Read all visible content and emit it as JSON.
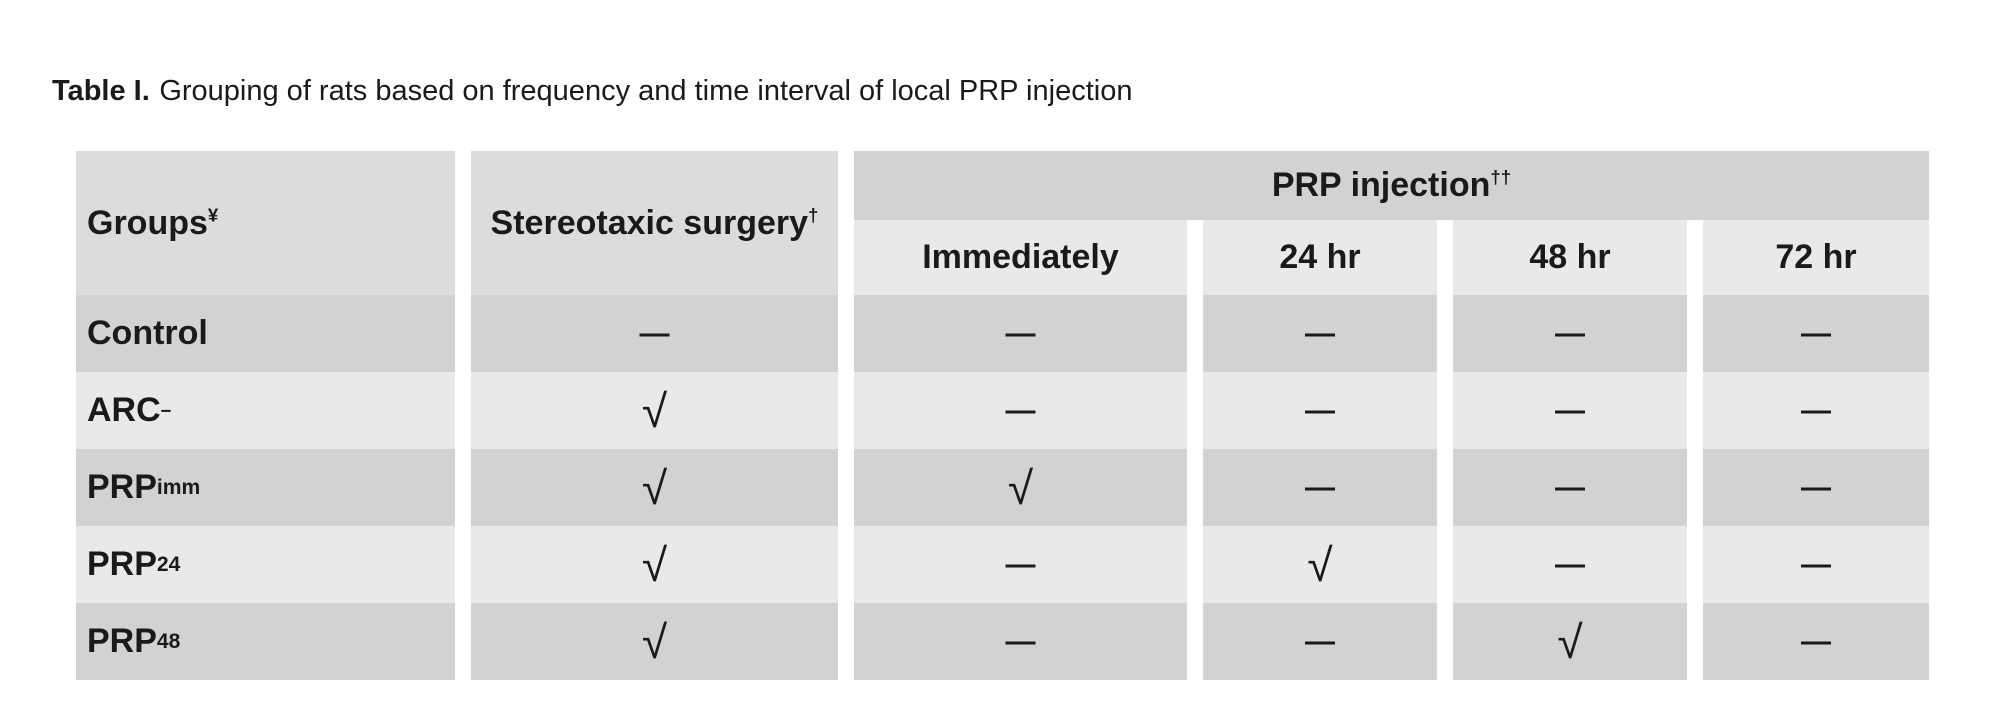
{
  "title": {
    "label": "Table I.",
    "text": "Grouping of rats based on frequency and time interval of local PRP injection"
  },
  "table": {
    "columns": {
      "groups": {
        "text": "Groups",
        "sup": "¥"
      },
      "stereotaxic": {
        "text": "Stereotaxic surgery",
        "sup": "†"
      },
      "prp_group": {
        "text": "PRP injection",
        "sup": "††"
      },
      "subheaders": [
        "Immediately",
        "24 hr",
        "48 hr",
        "72 hr"
      ]
    },
    "symbols": {
      "check": "√",
      "dash": "—"
    },
    "rows": [
      {
        "label": {
          "text": "Control"
        },
        "values": [
          "—",
          "—",
          "—",
          "—",
          "—"
        ]
      },
      {
        "label": {
          "text": "ARC",
          "sup": "−"
        },
        "values": [
          "√",
          "—",
          "—",
          "—",
          "—"
        ]
      },
      {
        "label": {
          "text": "PRP",
          "sub": "imm"
        },
        "values": [
          "√",
          "√",
          "—",
          "—",
          "—"
        ]
      },
      {
        "label": {
          "text": "PRP",
          "sub": "24"
        },
        "values": [
          "√",
          "—",
          "√",
          "—",
          "—"
        ]
      },
      {
        "label": {
          "text": "PRP",
          "sub": "48"
        },
        "values": [
          "√",
          "—",
          "—",
          "√",
          "—"
        ]
      }
    ],
    "colors": {
      "header_bg": "#dcdcdc",
      "group_band_bg": "#d2d2d2",
      "subheader_bg": "#e9e9e9",
      "row_dark_bg": "#d2d2d2",
      "row_light_bg": "#e9e9e9",
      "text": "#1a1a1a",
      "page_bg": "#ffffff"
    }
  }
}
